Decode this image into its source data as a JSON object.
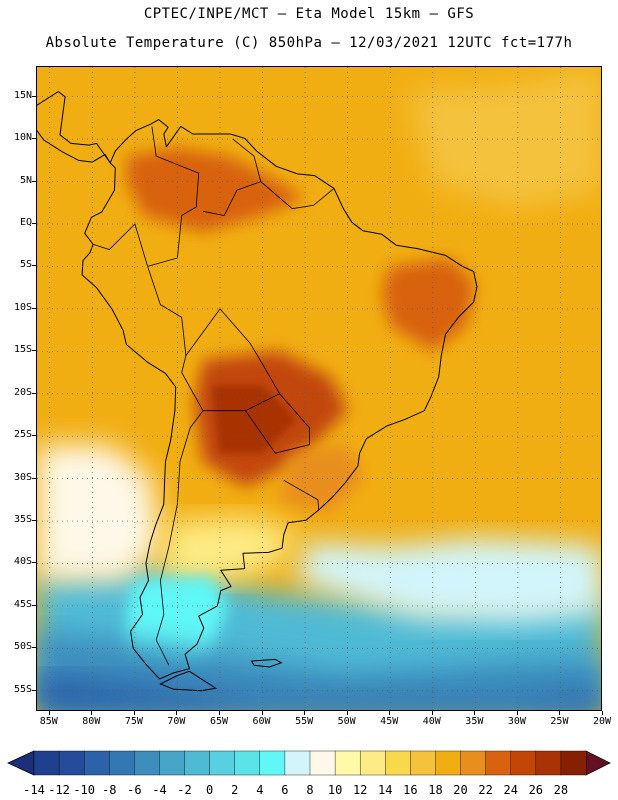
{
  "header": {
    "title_line1": "CPTEC/INPE/MCT –  Eta Model 15km – GFS",
    "title_line2": "Absolute Temperature (C) 850hPa – 12/03/2021 12UTC fct=177h"
  },
  "axes": {
    "lat_labels": [
      "15N",
      "10N",
      "5N",
      "EQ",
      "5S",
      "10S",
      "15S",
      "20S",
      "25S",
      "30S",
      "35S",
      "40S",
      "45S",
      "50S",
      "55S"
    ],
    "lon_labels": [
      "85W",
      "80W",
      "75W",
      "70W",
      "65W",
      "60W",
      "55W",
      "50W",
      "45W",
      "40W",
      "35W",
      "30W",
      "25W",
      "20W"
    ],
    "lat_range": [
      18.5,
      -57.5
    ],
    "lon_range": [
      -86.5,
      -20.0
    ],
    "gridlines": "dotted"
  },
  "colorbar": {
    "labels": [
      "-14",
      "-12",
      "-10",
      "-8",
      "-6",
      "-4",
      "-2",
      "0",
      "2",
      "4",
      "6",
      "8",
      "10",
      "12",
      "14",
      "16",
      "18",
      "20",
      "22",
      "24",
      "26",
      "28"
    ],
    "colors": [
      "#1f3f8f",
      "#244c9a",
      "#2b62a8",
      "#3478b3",
      "#3d8dbd",
      "#46a5c9",
      "#4fbad4",
      "#58d0e0",
      "#5ae4ea",
      "#61f7f7",
      "#d2f5fb",
      "#fdf8e8",
      "#fff9a8",
      "#fdeb86",
      "#f9d94c",
      "#f4c23c",
      "#f1ae12",
      "#e88e1c",
      "#d8620f",
      "#c24707",
      "#a83306",
      "#862003"
    ],
    "under_color": "#1d2f7a",
    "over_color": "#650f22"
  },
  "chart_data": {
    "type": "heatmap",
    "variable": "Absolute Temperature (C) 850hPa",
    "units": "C",
    "region": "South America",
    "value_range": [
      -14,
      28
    ],
    "features": [
      {
        "area": "Northern South America / Caribbean",
        "approx_value": 18
      },
      {
        "area": "Colombia-Venezuela highlands",
        "approx_value": 22
      },
      {
        "area": "Amazon basin",
        "approx_value": 18
      },
      {
        "area": "Northeast Brazil",
        "approx_value": 22
      },
      {
        "area": "Bolivia-Paraguay-Northern Argentina",
        "approx_value": 24
      },
      {
        "area": "Southern Brazil / Uruguay",
        "approx_value": 20
      },
      {
        "area": "Central Argentina",
        "approx_value": 12
      },
      {
        "area": "Patagonia",
        "approx_value": 4
      },
      {
        "area": "Southern Ocean below 45S",
        "approx_value": -4
      },
      {
        "area": "South Atlantic 35S-40S",
        "approx_value": 6
      }
    ]
  }
}
